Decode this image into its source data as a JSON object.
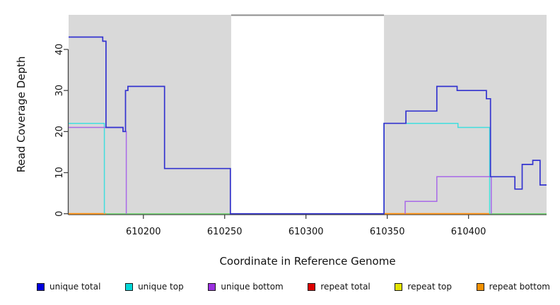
{
  "chart_data": {
    "type": "line",
    "subtype": "step-coverage-plot",
    "title": "",
    "xlabel": "Coordinate in Reference Genome",
    "ylabel": "Read Coverage Depth",
    "x_range": [
      610154,
      610448
    ],
    "y_range": [
      0,
      48.4
    ],
    "x_ticks": [
      {
        "value": 610200,
        "label": "610200"
      },
      {
        "value": 610250,
        "label": "610250"
      },
      {
        "value": 610300,
        "label": "610300"
      },
      {
        "value": 610350,
        "label": "610350"
      },
      {
        "value": 610400,
        "label": "610400"
      }
    ],
    "y_ticks": [
      {
        "value": 0,
        "label": "0"
      },
      {
        "value": 10,
        "label": "10"
      },
      {
        "value": 20,
        "label": "20"
      },
      {
        "value": 30,
        "label": "30"
      },
      {
        "value": 40,
        "label": "40"
      }
    ],
    "grid": "off",
    "background_panels": [
      {
        "name": "shaded-region-left",
        "x_start": 610154,
        "x_end": 610254,
        "fill": "#d9d9d9"
      },
      {
        "name": "shaded-region-right",
        "x_start": 610348,
        "x_end": 610448,
        "fill": "#d9d9d9"
      }
    ],
    "gap_top_border": {
      "x_start": 610254,
      "x_end": 610348,
      "color": "#8c8c8c"
    },
    "series": [
      {
        "name": "unique total",
        "color": "#3333cf",
        "width": 1.7,
        "segments": [
          [
            [
              610154,
              43
            ],
            [
              610175,
              43
            ],
            [
              610175,
              42
            ],
            [
              610177,
              42
            ],
            [
              610177,
              21
            ],
            [
              610187.5,
              21
            ],
            [
              610187.5,
              20
            ],
            [
              610189,
              20
            ],
            [
              610189,
              30
            ],
            [
              610190.5,
              30
            ],
            [
              610190.5,
              31
            ],
            [
              610213,
              31
            ],
            [
              610213,
              11
            ],
            [
              610253.5,
              11
            ],
            [
              610253.5,
              0
            ],
            [
              610348,
              0
            ],
            [
              610348,
              22
            ],
            [
              610361.5,
              22
            ],
            [
              610361.5,
              25
            ],
            [
              610380.5,
              25
            ],
            [
              610380.5,
              31
            ],
            [
              610393,
              31
            ],
            [
              610393,
              30
            ],
            [
              610411,
              30
            ],
            [
              610411,
              28
            ],
            [
              610413.5,
              28
            ],
            [
              610413.5,
              9
            ],
            [
              610428.5,
              9
            ],
            [
              610428.5,
              6
            ],
            [
              610433,
              6
            ],
            [
              610433,
              12
            ],
            [
              610439.5,
              12
            ],
            [
              610439.5,
              13
            ],
            [
              610444,
              13
            ],
            [
              610444,
              7
            ],
            [
              610448,
              7
            ]
          ]
        ]
      },
      {
        "name": "unique top",
        "color": "#40dede",
        "width": 1.5,
        "segments": [
          [
            [
              610154,
              22
            ],
            [
              610176,
              22
            ],
            [
              610176,
              0
            ]
          ],
          [
            [
              610348,
              0
            ],
            [
              610348,
              22
            ],
            [
              610393.5,
              22
            ],
            [
              610393.5,
              21
            ],
            [
              610413,
              21
            ],
            [
              610413,
              0
            ]
          ]
        ]
      },
      {
        "name": "unique bottom",
        "color": "#a869e8",
        "width": 1.5,
        "segments": [
          [
            [
              610154,
              21
            ],
            [
              610187.5,
              21
            ],
            [
              610187.5,
              20
            ],
            [
              610189.5,
              20
            ],
            [
              610189.5,
              0
            ]
          ],
          [
            [
              610361,
              0
            ],
            [
              610361,
              3
            ],
            [
              610380.5,
              3
            ],
            [
              610380.5,
              9
            ],
            [
              610414,
              9
            ],
            [
              610414,
              0
            ]
          ]
        ]
      },
      {
        "name": "repeat total",
        "color": "#dd0000",
        "width": 1.5,
        "segments": [],
        "note": "stays at 0, hidden under other zero-depth lines"
      },
      {
        "name": "repeat top",
        "color": "#e3e300",
        "width": 1.5,
        "segments": [],
        "note": "stays at 0, visible only blended as green zero line"
      },
      {
        "name": "repeat bottom",
        "color": "#ff9517",
        "width": 1.8,
        "segments": [
          [
            [
              610154,
              0
            ],
            [
              610177,
              0
            ]
          ],
          [
            [
              610348,
              0
            ],
            [
              610413,
              0
            ]
          ]
        ]
      }
    ],
    "zero_overlap": {
      "name": "zero-line-cyan-yellow-overlap",
      "color": "#78d878",
      "width": 1.5,
      "segments": [
        [
          [
            610177,
            0
          ],
          [
            610253.5,
            0
          ]
        ],
        [
          [
            610413,
            0
          ],
          [
            610448,
            0
          ]
        ]
      ]
    },
    "draw_order": [
      "repeat total",
      "repeat top",
      "repeat bottom",
      "zero_overlap",
      "unique top",
      "unique bottom",
      "unique total"
    ],
    "legend": {
      "position": "bottom",
      "items": [
        {
          "label": "unique total",
          "swatch_color": "#0000dd"
        },
        {
          "label": "unique top",
          "swatch_color": "#00d8d8"
        },
        {
          "label": "unique bottom",
          "swatch_color": "#9b30e0"
        },
        {
          "label": "repeat total",
          "swatch_color": "#dd0000"
        },
        {
          "label": "repeat top",
          "swatch_color": "#e3e300"
        },
        {
          "label": "repeat bottom",
          "swatch_color": "#f29100"
        }
      ]
    }
  }
}
